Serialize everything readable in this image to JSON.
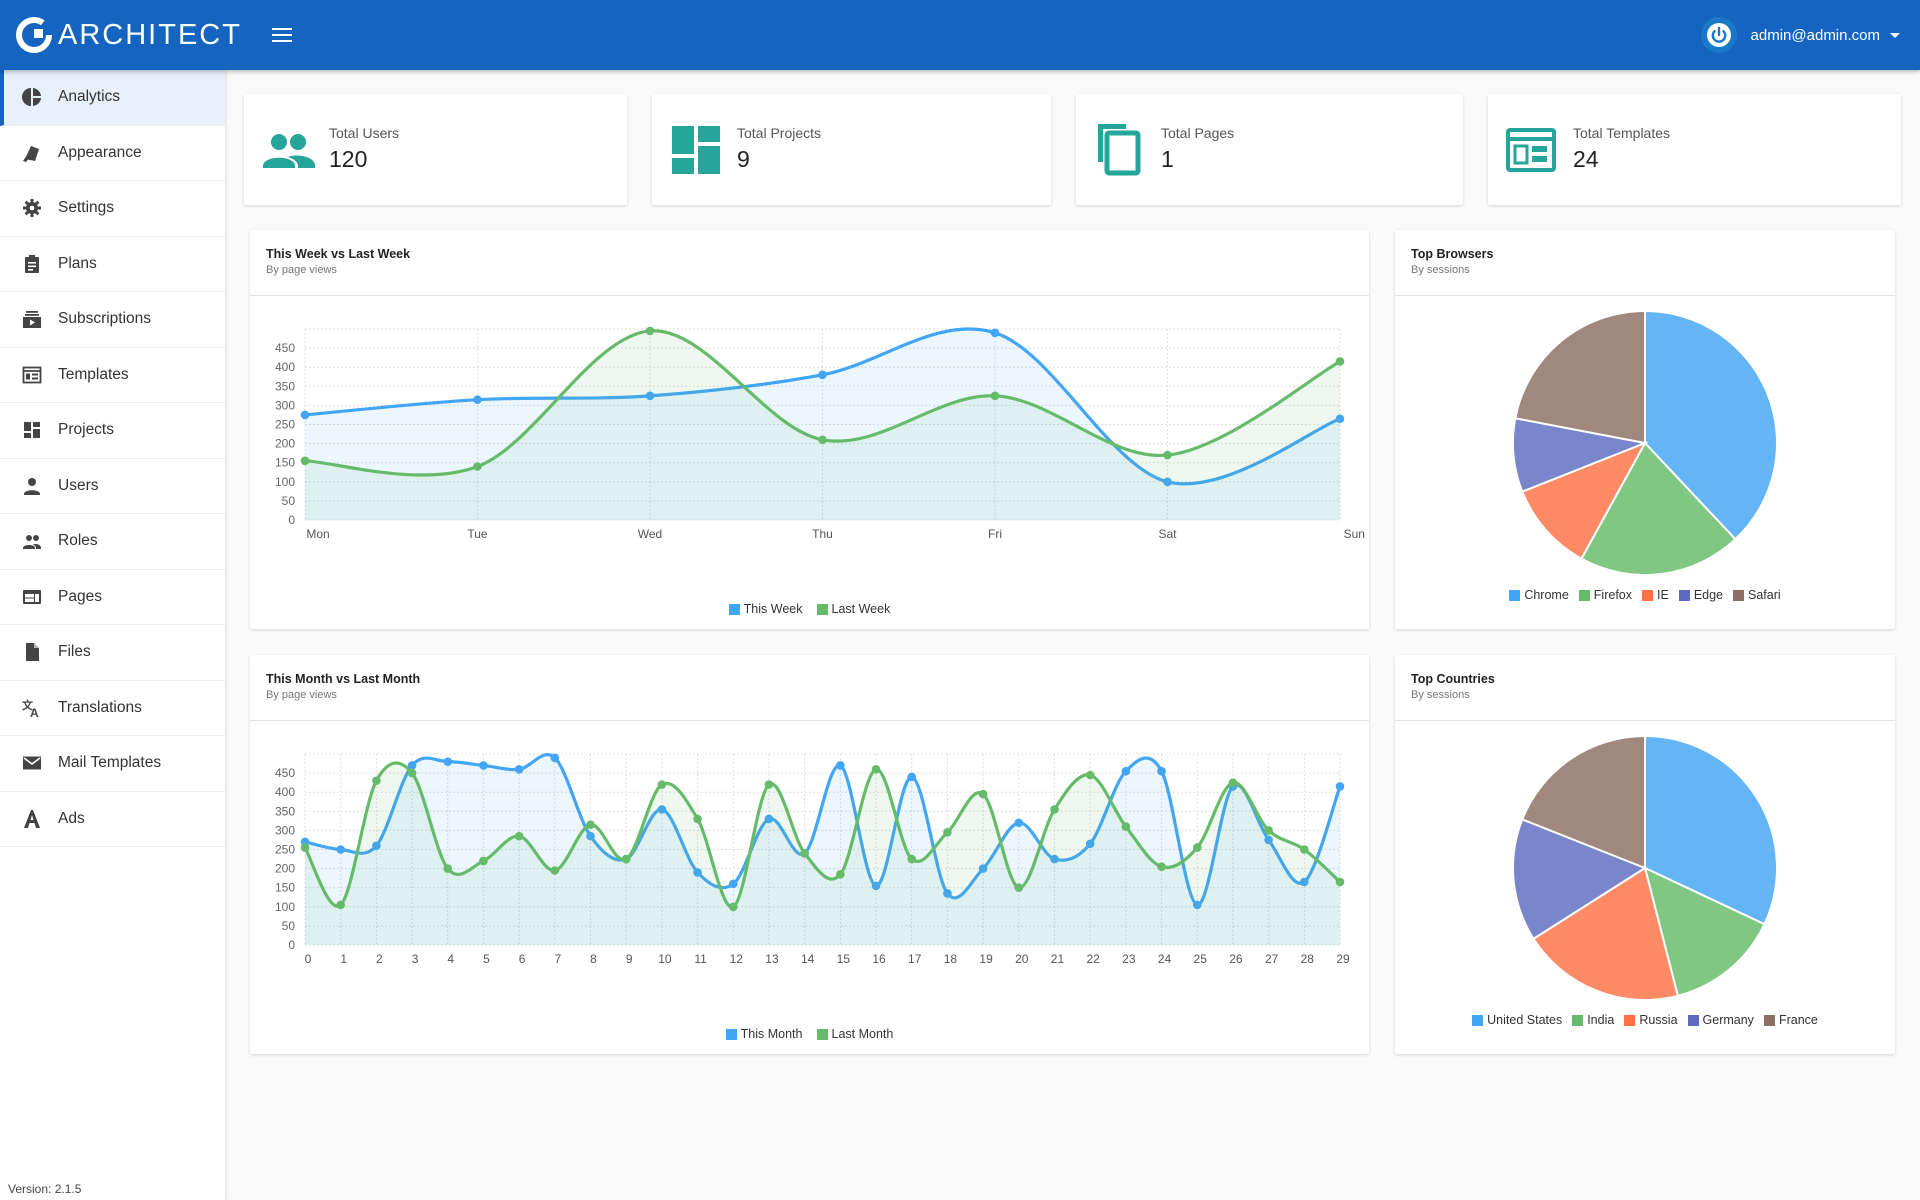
{
  "header": {
    "app_name": "ARCHITECT",
    "user_email": "admin@admin.com"
  },
  "sidebar": {
    "items": [
      {
        "label": "Analytics",
        "icon": "pie-chart-icon",
        "active": true
      },
      {
        "label": "Appearance",
        "icon": "paint-brush-icon"
      },
      {
        "label": "Settings",
        "icon": "gear-icon"
      },
      {
        "label": "Plans",
        "icon": "clipboard-icon"
      },
      {
        "label": "Subscriptions",
        "icon": "subscriptions-icon"
      },
      {
        "label": "Templates",
        "icon": "web-layout-icon"
      },
      {
        "label": "Projects",
        "icon": "dashboard-grid-icon"
      },
      {
        "label": "Users",
        "icon": "person-icon"
      },
      {
        "label": "Roles",
        "icon": "people-icon"
      },
      {
        "label": "Pages",
        "icon": "web-page-icon"
      },
      {
        "label": "Files",
        "icon": "file-icon"
      },
      {
        "label": "Translations",
        "icon": "translate-icon"
      },
      {
        "label": "Mail Templates",
        "icon": "mail-icon"
      },
      {
        "label": "Ads",
        "icon": "ads-icon"
      }
    ],
    "version": "Version: 2.1.5"
  },
  "stats": [
    {
      "label": "Total Users",
      "value": "120",
      "icon": "people-icon"
    },
    {
      "label": "Total Projects",
      "value": "9",
      "icon": "dashboard-grid-icon"
    },
    {
      "label": "Total Pages",
      "value": "1",
      "icon": "copy-pages-icon"
    },
    {
      "label": "Total Templates",
      "value": "24",
      "icon": "web-layout-icon"
    }
  ],
  "colors": {
    "primary": "#1565c0",
    "accent": "#26a69a",
    "blue": "#42a5f5",
    "green": "#66bb6a"
  },
  "panels": {
    "week": {
      "title": "This Week vs Last Week",
      "subtitle": "By page views"
    },
    "month": {
      "title": "This Month vs Last Month",
      "subtitle": "By page views"
    },
    "browsers": {
      "title": "Top Browsers",
      "subtitle": "By sessions"
    },
    "countries": {
      "title": "Top Countries",
      "subtitle": "By sessions"
    }
  },
  "chart_data": [
    {
      "type": "line",
      "title": "This Week vs Last Week",
      "x": [
        "Mon",
        "Tue",
        "Wed",
        "Thu",
        "Fri",
        "Sat",
        "Sun"
      ],
      "ylim": [
        0,
        500
      ],
      "yticks": [
        0,
        50,
        100,
        150,
        200,
        250,
        300,
        350,
        400,
        450
      ],
      "grid": true,
      "legend": "bottom",
      "series": [
        {
          "name": "This Week",
          "color": "#42a5f5",
          "values": [
            275,
            315,
            325,
            380,
            490,
            100,
            265
          ]
        },
        {
          "name": "Last Week",
          "color": "#66bb6a",
          "values": [
            155,
            140,
            495,
            210,
            325,
            170,
            415
          ]
        }
      ]
    },
    {
      "type": "line",
      "title": "This Month vs Last Month",
      "x": [
        "0",
        "1",
        "2",
        "3",
        "4",
        "5",
        "6",
        "7",
        "8",
        "9",
        "10",
        "11",
        "12",
        "13",
        "14",
        "15",
        "16",
        "17",
        "18",
        "19",
        "20",
        "21",
        "22",
        "23",
        "24",
        "25",
        "26",
        "27",
        "28",
        "29"
      ],
      "ylim": [
        0,
        500
      ],
      "yticks": [
        0,
        50,
        100,
        150,
        200,
        250,
        300,
        350,
        400,
        450
      ],
      "grid": true,
      "legend": "bottom",
      "series": [
        {
          "name": "This Month",
          "color": "#42a5f5",
          "values": [
            270,
            250,
            260,
            470,
            480,
            470,
            460,
            490,
            285,
            225,
            355,
            190,
            160,
            330,
            240,
            470,
            155,
            440,
            135,
            200,
            320,
            225,
            265,
            455,
            455,
            105,
            415,
            275,
            165,
            415
          ]
        },
        {
          "name": "Last Month",
          "color": "#66bb6a",
          "values": [
            255,
            105,
            430,
            450,
            200,
            220,
            285,
            195,
            315,
            225,
            420,
            330,
            100,
            420,
            240,
            185,
            460,
            225,
            295,
            395,
            150,
            355,
            445,
            310,
            205,
            255,
            425,
            300,
            250,
            165
          ]
        }
      ]
    },
    {
      "type": "pie",
      "title": "Top Browsers",
      "legend": "bottom",
      "categories": [
        "Chrome",
        "Firefox",
        "IE",
        "Edge",
        "Safari"
      ],
      "values": [
        38,
        20,
        11,
        9,
        22
      ],
      "colors": [
        "#64b5f6",
        "#81c784",
        "#ff8a65",
        "#7986cb",
        "#a1887f"
      ]
    },
    {
      "type": "pie",
      "title": "Top Countries",
      "legend": "bottom",
      "categories": [
        "United States",
        "India",
        "Russia",
        "Germany",
        "France"
      ],
      "values": [
        32,
        14,
        20,
        15,
        19
      ],
      "colors": [
        "#64b5f6",
        "#81c784",
        "#ff8a65",
        "#7986cb",
        "#a1887f"
      ]
    }
  ]
}
